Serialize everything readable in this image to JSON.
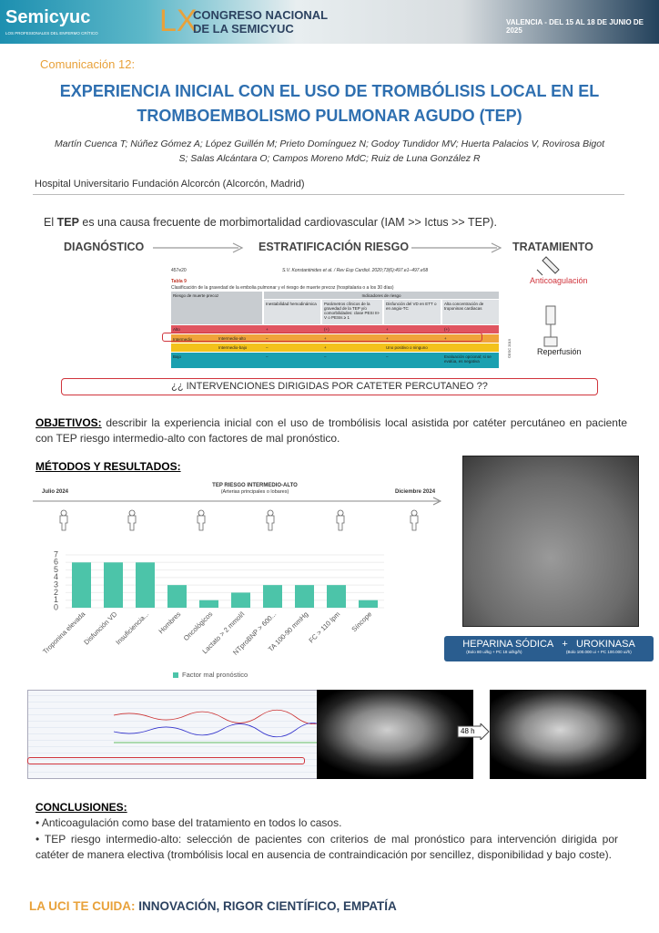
{
  "header": {
    "logo": "Semicyuc",
    "logo_tagline": "LOS PROFESIONALES DEL ENFERMO CRÍTICO",
    "congress_number": "LX",
    "congress_name": [
      "CONGRESO NACIONAL",
      "DE LA SEMICYUC"
    ],
    "location_date": "VALENCIA - DEL 15 AL 18 DE JUNIO DE 2025"
  },
  "communication": "Comunicación 12:",
  "title": [
    "EXPERIENCIA INICIAL CON EL USO DE TROMBÓLISIS LOCAL EN EL",
    "TROMBOEMBOLISMO PULMONAR AGUDO (TEP)"
  ],
  "authors": [
    "Martín Cuenca T; Núñez Gómez A; López Guillén M; Prieto Domínguez N; Godoy Tundidor MV; Huerta Palacios V, Rovirosa Bigot",
    "S; Salas Alcántara O; Campos Moreno MdC; Ruiz de Luna González R"
  ],
  "affiliation": "Hospital Universitario Fundación Alcorcón (Alcorcón, Madrid)",
  "intro": {
    "prefix": "El ",
    "bold": "TEP",
    "rest": " es una causa frecuente de morbimortalidad cardiovascular  (IAM >> Ictus >> TEP)."
  },
  "flow": {
    "steps": [
      "DIAGNÓSTICO",
      "ESTRATIFICACIÓN RIESGO",
      "TRATAMIENTO"
    ],
    "treatments": [
      "Anticoagulación",
      "Reperfusión"
    ]
  },
  "risk_table": {
    "page": "457e20",
    "citation": "S.V. Konstantinides et al. / Rev Esp Cardiol. 2020;73(6):497.e1–497.e58",
    "label": "Tabla 9",
    "caption": "Clasificación de la gravedad de la embolia pulmonar y el riesgo de muerte precoz (hospitalaria o a los 30 días)",
    "group_header": "Indicadores de riesgo",
    "headers": [
      "Riesgo de muerte precoz",
      "Inestabilidad hemodinámica",
      "Parámetros clínicos de la gravedad de la TEP y/o comorbilidades: clase PESI III-V o PESIs ≥ 1",
      "Disfunción del VD en ETT o en angio-TC",
      "Alta concentración de troponinas cardiacas"
    ],
    "rows": [
      [
        "Alto",
        "+",
        "(+)",
        "+",
        "(+)"
      ],
      [
        "Intermedio-alto",
        "–",
        "+",
        "+",
        "+"
      ],
      [
        "Intermedio-bajo",
        "–",
        "+",
        "Uno positivo o ninguno",
        ""
      ],
      [
        "Bajo",
        "–",
        "–",
        "–",
        "Evaluación opcional; si se evalúa, es negativa"
      ]
    ],
    "group": "Intermedio",
    "copyright": "©ESC 2019"
  },
  "question": "¿¿ INTERVENCIONES DIRIGIDAS POR CATETER PERCUTANEO ??",
  "objectives": {
    "label": "OBJETIVOS:",
    "text": " describir la experiencia inicial con el uso de trombólisis local asistida por catéter percutáneo en paciente con TEP riesgo intermedio-alto con factores de mal pronóstico."
  },
  "methods": {
    "label": "MÉTODOS Y RESULTADOS:",
    "timeline": {
      "title": "TEP RIESGO INTERMEDIO-ALTO",
      "subtitle": "(Arterias principales o lobares)",
      "start": "Julio 2024",
      "end": "Diciembre 2024"
    }
  },
  "chart_data": {
    "type": "bar",
    "categories": [
      "Troponina elevada",
      "Disfunción VD",
      "Insuficiencia...",
      "Hombres",
      "Oncológicos",
      "Lactato > 2 mmol/l",
      "NTproBNP > 600...",
      "TA 100-90 mmHg",
      "FC > 110 lpm",
      "Síncope"
    ],
    "values": [
      6,
      6,
      6,
      3,
      1,
      2,
      3,
      3,
      3,
      1
    ],
    "ylim": [
      0,
      7
    ],
    "yticks": [
      0,
      1,
      2,
      3,
      4,
      5,
      6,
      7
    ],
    "legend": "Factor mal pronóstico",
    "color": "#4cc4a9",
    "grid": true
  },
  "treatment_box": {
    "drugs": [
      "HEPARINA SÓDICA",
      "UROKINASA"
    ],
    "separator": "+",
    "doses": [
      "(Bolo 80 ui/kg + PC 18 ui/kg/h)",
      "(Bolo 100.000 ui + PC 100.000 ui/h)"
    ]
  },
  "ct_interval": "48 h",
  "conclusions": {
    "label": "CONCLUSIONES:",
    "items": [
      "• Anticoagulación como base del tratamiento en todos lo casos.",
      "• TEP riesgo intermedio-alto: selección de pacientes con criterios de mal pronóstico para intervención dirigida por catéter de manera electiva (trombólisis local en ausencia de contraindicación por sencillez, disponibilidad y bajo coste)."
    ]
  },
  "footer": {
    "lead": "LA UCI TE CUIDA:",
    "rest": " INNOVACIÓN, RIGOR CIENTÍFICO, EMPATÍA"
  }
}
